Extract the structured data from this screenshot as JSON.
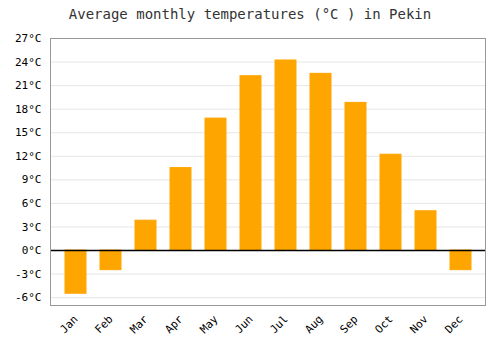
{
  "chart_data": {
    "type": "bar",
    "title": "Average monthly temperatures (°C ) in Pekin",
    "categories": [
      "Jan",
      "Feb",
      "Mar",
      "Apr",
      "May",
      "Jun",
      "Jul",
      "Aug",
      "Sep",
      "Oct",
      "Nov",
      "Dec"
    ],
    "values": [
      -5.5,
      -2.5,
      3.8,
      10.5,
      16.8,
      22.2,
      24.2,
      22.5,
      18.8,
      12.2,
      5.0,
      -2.5
    ],
    "color": "#FFA500",
    "ylim": [
      -7,
      27
    ],
    "yticks": [
      {
        "value": -6,
        "label": "-6°C"
      },
      {
        "value": -3,
        "label": "-3°C"
      },
      {
        "value": 0,
        "label": "0°C"
      },
      {
        "value": 3,
        "label": "3°C"
      },
      {
        "value": 6,
        "label": "6°C"
      },
      {
        "value": 9,
        "label": "9°C"
      },
      {
        "value": 12,
        "label": "12°C"
      },
      {
        "value": 15,
        "label": "15°C"
      },
      {
        "value": 18,
        "label": "18°C"
      },
      {
        "value": 21,
        "label": "21°C"
      },
      {
        "value": 24,
        "label": "24°C"
      },
      {
        "value": 27,
        "label": "27°C"
      }
    ],
    "grid": true
  }
}
